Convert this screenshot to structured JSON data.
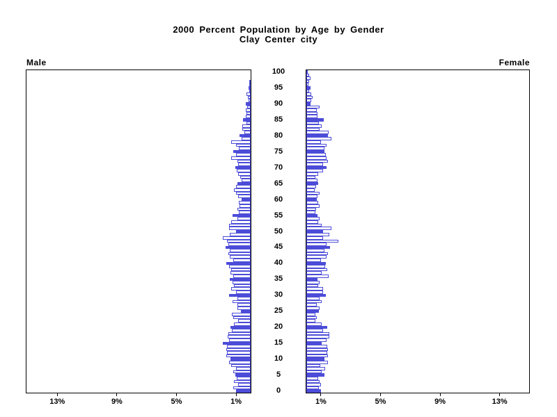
{
  "title": {
    "line1": "2000 Percent Population by Age by Gender",
    "line2": "Clay Center city"
  },
  "panel_labels": {
    "left": "Male",
    "right": "Female"
  },
  "colors": {
    "bar_outline": "#4c4cd8",
    "bar_fill_highlight": "#4c4cd8",
    "bar_fill_normal": "#ffffff",
    "axis": "#000000",
    "background": "#ffffff"
  },
  "chart_data": {
    "type": "bar",
    "variant": "population-pyramid",
    "title": "2000 Percent Population by Age by Gender",
    "subtitle": "Clay Center city",
    "age_min": 0,
    "age_max": 100,
    "age_label_interval": 5,
    "age_labels": [
      "0",
      "5",
      "10",
      "15",
      "20",
      "25",
      "30",
      "35",
      "40",
      "45",
      "50",
      "55",
      "60",
      "65",
      "70",
      "75",
      "80",
      "85",
      "90",
      "95",
      "100"
    ],
    "x_ticks_percent": [
      1,
      5,
      9,
      13
    ],
    "x_tick_labels_male": [
      "13%",
      "9%",
      "5%",
      "1%"
    ],
    "x_tick_labels_female": [
      "1%",
      "5%",
      "9%",
      "13%"
    ],
    "x_max_percent": 15.1,
    "highlight_rule": "bars for ages divisible by 5 are solid blue; other ages are white with blue outline",
    "legend_position": "none",
    "grid": false,
    "series": [
      {
        "name": "Male",
        "side": "left",
        "values_percent_by_age": [
          1.0,
          1.15,
          0.85,
          1.1,
          0.95,
          1.05,
          1.15,
          1.0,
          1.3,
          1.45,
          1.35,
          1.65,
          1.6,
          1.65,
          1.6,
          1.85,
          1.45,
          1.55,
          1.5,
          1.25,
          1.35,
          1.1,
          0.85,
          1.15,
          1.25,
          0.65,
          0.9,
          0.9,
          1.2,
          0.9,
          1.45,
          1.0,
          1.3,
          1.1,
          1.2,
          1.4,
          1.15,
          1.35,
          1.3,
          1.45,
          1.65,
          1.15,
          1.4,
          1.5,
          1.4,
          1.7,
          1.5,
          1.6,
          1.85,
          1.4,
          1.0,
          1.45,
          1.45,
          1.3,
          0.9,
          1.2,
          0.8,
          0.9,
          0.75,
          0.8,
          0.6,
          0.85,
          1.0,
          1.1,
          1.0,
          0.9,
          0.6,
          0.7,
          0.85,
          0.95,
          1.05,
          0.85,
          0.9,
          1.3,
          1.0,
          1.15,
          0.8,
          1.0,
          1.3,
          0.6,
          0.75,
          0.4,
          0.55,
          0.55,
          0.3,
          0.5,
          0.35,
          0.3,
          0.35,
          0.25,
          0.35,
          0.15,
          0.2,
          0.3,
          0.1,
          0.15,
          0.1,
          0.05,
          0.0,
          0.0,
          0.0
        ]
      },
      {
        "name": "Female",
        "side": "right",
        "values_percent_by_age": [
          1.0,
          0.85,
          1.0,
          0.9,
          0.8,
          1.2,
          1.05,
          1.25,
          0.95,
          1.45,
          1.2,
          1.45,
          1.4,
          1.45,
          1.4,
          1.05,
          1.35,
          1.55,
          1.55,
          1.1,
          1.4,
          1.05,
          0.6,
          0.7,
          0.6,
          0.85,
          0.9,
          0.7,
          1.05,
          0.9,
          1.3,
          1.1,
          1.1,
          0.8,
          0.9,
          0.75,
          1.5,
          1.05,
          1.4,
          1.25,
          1.3,
          1.0,
          1.35,
          1.45,
          1.2,
          1.6,
          1.35,
          2.15,
          1.1,
          1.55,
          1.1,
          1.7,
          1.05,
          0.8,
          0.9,
          0.75,
          0.6,
          0.65,
          0.9,
          0.8,
          0.7,
          0.75,
          0.9,
          0.55,
          0.65,
          0.8,
          0.75,
          0.6,
          0.8,
          1.1,
          1.35,
          1.1,
          1.45,
          1.35,
          1.3,
          1.2,
          1.2,
          1.35,
          1.0,
          1.7,
          1.45,
          1.5,
          0.9,
          1.05,
          0.85,
          1.15,
          0.75,
          0.75,
          0.72,
          0.9,
          0.3,
          0.33,
          0.4,
          0.35,
          0.2,
          0.3,
          0.15,
          0.2,
          0.3,
          0.2,
          0.1
        ]
      }
    ]
  }
}
